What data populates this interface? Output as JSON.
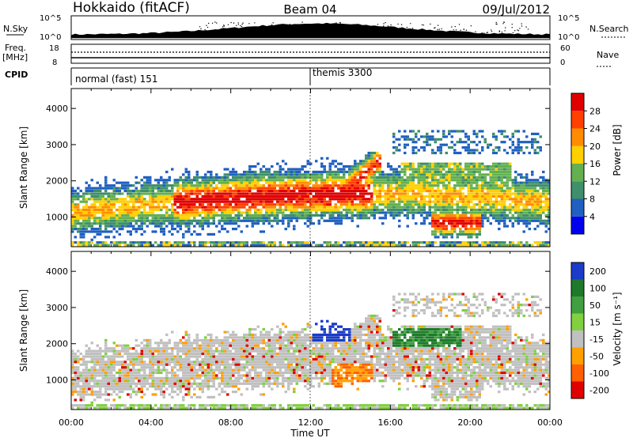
{
  "header": {
    "station": "Hokkaido (fitACF)",
    "beam": "Beam 04",
    "date": "09/Jul/2012"
  },
  "summary": {
    "nsky_label": "N.Sky",
    "nsearch_label": "N.Search",
    "freq_label_1": "Freq.",
    "freq_label_2": "[MHz]",
    "nave_label": "Nave",
    "cpid_label": "CPID",
    "noise_ticks": [
      "10^5",
      "10^0"
    ],
    "freq_ticks": [
      "18",
      "8"
    ],
    "nave_ticks": [
      "60",
      "0"
    ],
    "cpid_modes": [
      {
        "label": "normal (fast) 151",
        "start": "00:00",
        "end": "12:00"
      },
      {
        "label": "themis 3300",
        "start": "12:00",
        "end": "00:00"
      }
    ]
  },
  "chart_data": [
    {
      "type": "heatmap",
      "name": "power-panel",
      "ylabel": "Slant Range [km]",
      "yticks": [
        1000,
        2000,
        3000,
        4000
      ],
      "ylim": [
        180,
        4550
      ],
      "xticks": [
        "00:00",
        "04:00",
        "08:00",
        "12:00",
        "16:00",
        "20:00",
        "00:00"
      ],
      "colorbar": {
        "label": "Power [dB]",
        "ticks": [
          4,
          8,
          12,
          16,
          20,
          24,
          28
        ],
        "colors": [
          "#0000ee",
          "#2060c0",
          "#3f8f6a",
          "#64b050",
          "#ffd000",
          "#ff8c00",
          "#ff4000",
          "#e00000"
        ]
      }
    },
    {
      "type": "heatmap",
      "name": "velocity-panel",
      "ylabel": "Slant Range [km]",
      "yticks": [
        1000,
        2000,
        3000,
        4000
      ],
      "ylim": [
        180,
        4550
      ],
      "xticks": [
        "00:00",
        "04:00",
        "08:00",
        "12:00",
        "16:00",
        "20:00",
        "00:00"
      ],
      "xlabel": "Time UT",
      "colorbar": {
        "label": "Velocity [m s⁻¹]",
        "ticks": [
          200,
          100,
          50,
          15,
          -15,
          -50,
          -100,
          -200
        ],
        "colors": [
          "#1a3cc8",
          "#1e7a2a",
          "#40a040",
          "#80d040",
          "#c0c0c0",
          "#ffa000",
          "#ff6000",
          "#e00000"
        ]
      }
    }
  ]
}
